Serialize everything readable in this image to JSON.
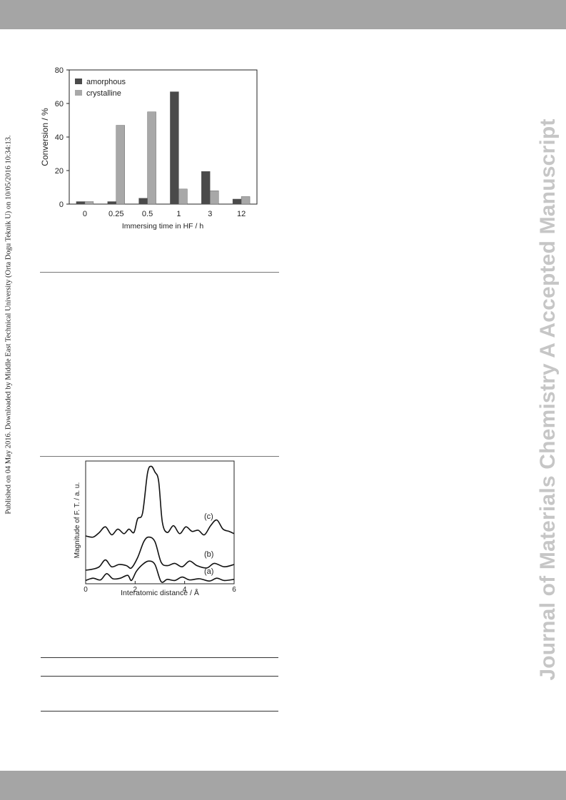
{
  "margin_text": {
    "left": "Published on 04 May 2016. Downloaded by Middle East Technical University (Orta Dogu Teknik U) on 10/05/2016 10:34:13.",
    "right": "Journal of Materials Chemistry A Accepted Manuscript"
  },
  "colors": {
    "bar_gray": "#a5a5a5",
    "amorphous": "#4a4a4a",
    "crystalline": "#a8a8a8",
    "watermark": "#c6c6c6"
  },
  "chart_data": [
    {
      "type": "bar",
      "categories": [
        "0",
        "0.25",
        "0.5",
        "1",
        "3",
        "12"
      ],
      "series": [
        {
          "name": "amorphous",
          "values": [
            1.5,
            1.5,
            3.5,
            67,
            19.5,
            3
          ]
        },
        {
          "name": "crystalline",
          "values": [
            1.5,
            47,
            55,
            9,
            8,
            4.5
          ]
        }
      ],
      "xlabel": "Immersing time in HF / h",
      "ylabel": "Conversion / %",
      "ylim": [
        0,
        80
      ],
      "yticks": [
        "0",
        "20",
        "40",
        "60",
        "80"
      ],
      "legend": "top-left"
    },
    {
      "type": "line",
      "xlabel": "Interatomic distance / Å",
      "ylabel": "Magnitude of F. T. / a. u.",
      "xlim": [
        0,
        6
      ],
      "xticks": [
        "0",
        "2",
        "4",
        "6"
      ],
      "series": [
        {
          "name": "(a)",
          "x": [
            0,
            0.3,
            0.6,
            0.85,
            1.1,
            1.4,
            1.7,
            1.85,
            2.05,
            2.3,
            2.55,
            2.8,
            3.05,
            3.3,
            3.6,
            3.9,
            4.2,
            4.6,
            5.0,
            5.3,
            5.6,
            6.0
          ],
          "y": [
            0.1,
            0.3,
            0.15,
            0.7,
            0.25,
            0.3,
            0.55,
            0.1,
            0.9,
            1.5,
            1.8,
            1.5,
            0.0,
            0.2,
            0.1,
            0.4,
            0.15,
            0.25,
            0.05,
            0.3,
            0.1,
            0.2
          ]
        },
        {
          "name": "(b)",
          "x": [
            0,
            0.3,
            0.55,
            0.8,
            1.05,
            1.35,
            1.65,
            1.85,
            2.1,
            2.35,
            2.55,
            2.8,
            3.05,
            3.3,
            3.6,
            3.9,
            4.2,
            4.5,
            4.9,
            5.2,
            5.6,
            6.0
          ],
          "y": [
            1.0,
            1.1,
            1.3,
            1.9,
            1.3,
            1.5,
            1.4,
            1.2,
            2.1,
            3.5,
            3.9,
            3.5,
            1.7,
            1.4,
            1.6,
            1.3,
            1.8,
            1.4,
            1.2,
            1.6,
            1.3,
            1.5
          ]
        },
        {
          "name": "(c)",
          "x": [
            0,
            0.3,
            0.55,
            0.8,
            1.05,
            1.3,
            1.55,
            1.75,
            1.95,
            2.1,
            2.3,
            2.5,
            2.65,
            2.8,
            2.95,
            3.1,
            3.3,
            3.55,
            3.8,
            4.05,
            4.3,
            4.55,
            4.8,
            5.05,
            5.3,
            5.55,
            5.8,
            6.0
          ],
          "y": [
            4.0,
            3.9,
            4.3,
            4.8,
            4.1,
            4.6,
            4.2,
            4.6,
            4.3,
            5.5,
            6.0,
            9.5,
            10.1,
            9.6,
            8.8,
            5.2,
            4.3,
            4.9,
            4.2,
            4.8,
            4.4,
            4.5,
            4.1,
            4.9,
            5.4,
            4.6,
            4.4,
            4.2
          ]
        }
      ]
    }
  ]
}
